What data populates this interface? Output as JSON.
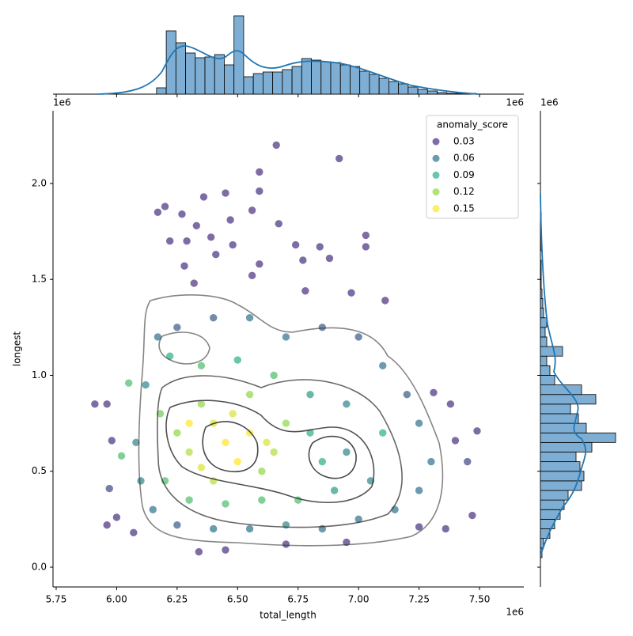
{
  "chart_data": [
    {
      "type": "scatter",
      "x_label": "total_length",
      "y_label": "longest",
      "x_offset": "1e6",
      "xlim": [
        5.737,
        7.683
      ],
      "ylim": [
        -0.103,
        2.379
      ],
      "xticks": [
        5.75,
        {
          "value": 6.0,
          "label": "6.00"
        },
        6.25,
        {
          "value": 6.5,
          "label": "6.50"
        },
        6.75,
        {
          "value": 7.0,
          "label": "7.00"
        },
        7.25,
        {
          "value": 7.5,
          "label": "7.50"
        }
      ],
      "yticks": [
        {
          "value": 0,
          "label": "0.0"
        },
        {
          "value": 0.5,
          "label": "0.5"
        },
        {
          "value": 1.0,
          "label": "1.0"
        },
        {
          "value": 1.5,
          "label": "1.5"
        },
        {
          "value": 2.0,
          "label": "2.0"
        }
      ],
      "legend": {
        "title": "anomaly_score",
        "position": "upper right",
        "levels": [
          0.03,
          0.06,
          0.09,
          0.12,
          0.15
        ],
        "colors": [
          "#472f7d",
          "#2d708e",
          "#29af7f",
          "#8fd744",
          "#fde725"
        ]
      },
      "x": [
        6.66,
        6.92,
        6.59,
        6.59,
        6.45,
        6.36,
        6.2,
        6.27,
        6.17,
        6.56,
        6.67,
        6.33,
        6.47,
        6.22,
        6.29,
        6.39,
        6.48,
        6.74,
        6.84,
        7.03,
        7.03,
        6.88,
        6.59,
        6.77,
        6.28,
        6.41,
        6.32,
        6.56,
        6.78,
        6.97,
        7.11,
        5.91,
        5.96,
        5.98,
        5.97,
        6.0,
        5.96,
        7.49,
        7.4,
        7.45,
        7.47,
        7.36,
        7.31,
        7.38,
        7.25,
        6.07,
        6.34,
        6.45,
        6.7,
        6.95,
        6.17,
        6.25,
        6.4,
        6.55,
        6.7,
        6.85,
        7.0,
        7.1,
        7.2,
        7.25,
        7.3,
        7.25,
        7.15,
        7.0,
        6.85,
        6.7,
        6.55,
        6.4,
        6.25,
        6.15,
        6.1,
        6.08,
        6.12,
        6.95,
        7.05,
        6.9,
        6.8,
        6.95,
        6.05,
        6.02,
        6.22,
        6.35,
        6.5,
        6.65,
        6.8,
        6.85,
        6.75,
        6.6,
        6.45,
        6.3,
        6.2,
        6.18,
        7.1,
        6.25,
        6.35,
        6.55,
        6.6,
        6.4,
        6.7,
        6.3,
        6.65,
        6.45,
        6.5,
        6.4,
        6.55,
        6.35,
        6.3,
        6.48,
        6.62
      ],
      "y": [
        2.2,
        2.13,
        2.06,
        1.96,
        1.95,
        1.93,
        1.88,
        1.84,
        1.85,
        1.86,
        1.79,
        1.78,
        1.81,
        1.7,
        1.7,
        1.72,
        1.68,
        1.68,
        1.67,
        1.73,
        1.67,
        1.61,
        1.58,
        1.6,
        1.57,
        1.63,
        1.48,
        1.52,
        1.44,
        1.43,
        1.39,
        0.85,
        0.85,
        0.66,
        0.41,
        0.26,
        0.22,
        0.71,
        0.66,
        0.55,
        0.27,
        0.2,
        0.91,
        0.85,
        0.21,
        0.18,
        0.08,
        0.09,
        0.12,
        0.13,
        1.2,
        1.25,
        1.3,
        1.3,
        1.2,
        1.25,
        1.2,
        1.05,
        0.9,
        0.75,
        0.55,
        0.4,
        0.3,
        0.25,
        0.2,
        0.22,
        0.2,
        0.2,
        0.22,
        0.3,
        0.45,
        0.65,
        0.95,
        0.6,
        0.45,
        0.4,
        0.9,
        0.85,
        0.96,
        0.58,
        1.1,
        1.05,
        1.08,
        1.0,
        0.7,
        0.55,
        0.35,
        0.35,
        0.33,
        0.35,
        0.45,
        0.8,
        0.7,
        0.7,
        0.85,
        0.9,
        0.5,
        0.45,
        0.75,
        0.6,
        0.6,
        0.65,
        0.55,
        0.75,
        0.7,
        0.52,
        0.75,
        0.8,
        0.65
      ],
      "hue": [
        0.02,
        0.02,
        0.02,
        0.03,
        0.02,
        0.03,
        0.02,
        0.02,
        0.03,
        0.03,
        0.02,
        0.03,
        0.02,
        0.03,
        0.02,
        0.02,
        0.02,
        0.02,
        0.02,
        0.02,
        0.02,
        0.02,
        0.03,
        0.03,
        0.03,
        0.02,
        0.03,
        0.03,
        0.03,
        0.03,
        0.02,
        0.02,
        0.02,
        0.03,
        0.04,
        0.03,
        0.02,
        0.03,
        0.03,
        0.04,
        0.03,
        0.03,
        0.03,
        0.02,
        0.03,
        0.03,
        0.02,
        0.03,
        0.03,
        0.03,
        0.06,
        0.05,
        0.05,
        0.06,
        0.06,
        0.05,
        0.05,
        0.06,
        0.05,
        0.06,
        0.06,
        0.06,
        0.06,
        0.06,
        0.06,
        0.07,
        0.06,
        0.06,
        0.05,
        0.06,
        0.07,
        0.07,
        0.07,
        0.07,
        0.07,
        0.08,
        0.08,
        0.07,
        0.1,
        0.1,
        0.09,
        0.1,
        0.09,
        0.1,
        0.09,
        0.09,
        0.1,
        0.1,
        0.1,
        0.1,
        0.1,
        0.11,
        0.09,
        0.12,
        0.12,
        0.12,
        0.12,
        0.13,
        0.12,
        0.13,
        0.13,
        0.15,
        0.16,
        0.14,
        0.15,
        0.14,
        0.15,
        0.14,
        0.14
      ]
    },
    {
      "type": "hist",
      "orientation": "vertical",
      "color": "#7eaed3",
      "x_offset_left": "1e6",
      "x_offset_right": "1e6",
      "xlim": [
        5.737,
        7.683
      ],
      "ylim": [
        0,
        100
      ],
      "bins": [
        6.165,
        6.205,
        6.245,
        6.285,
        6.325,
        6.365,
        6.405,
        6.445,
        6.485,
        6.525,
        6.565,
        6.605,
        6.645,
        6.685,
        6.725,
        6.765,
        6.805,
        6.845,
        6.885,
        6.925,
        6.965,
        7.005,
        7.045,
        7.085,
        7.125,
        7.165,
        7.205,
        7.245,
        7.285,
        7.325,
        7.365,
        7.405,
        7.445,
        7.485
      ],
      "counts": [
        8,
        80,
        65,
        52,
        46,
        47,
        50,
        37,
        99,
        22,
        26,
        28,
        28,
        31,
        35,
        45,
        43,
        41,
        40,
        37,
        35,
        29,
        25,
        20,
        16,
        13,
        9,
        6,
        4,
        2,
        1,
        1,
        1
      ]
    },
    {
      "type": "hist",
      "orientation": "horizontal",
      "color": "#7eaed3",
      "offset": "1e6",
      "ylim": [
        -0.103,
        2.379
      ],
      "xlim": [
        0,
        100
      ],
      "bins": [
        0.05,
        0.1,
        0.15,
        0.2,
        0.25,
        0.3,
        0.35,
        0.4,
        0.45,
        0.5,
        0.55,
        0.6,
        0.65,
        0.7,
        0.75,
        0.8,
        0.85,
        0.9,
        0.95,
        1.0,
        1.05,
        1.1,
        1.15,
        1.2,
        1.25,
        1.3,
        1.35,
        1.4,
        1.45,
        1.5,
        1.55,
        1.6,
        1.65,
        1.7,
        1.75,
        1.8,
        1.85,
        1.9,
        1.95
      ],
      "counts": [
        2,
        4,
        12,
        18,
        25,
        30,
        35,
        52,
        55,
        50,
        45,
        65,
        95,
        58,
        48,
        38,
        70,
        52,
        18,
        12,
        8,
        28,
        8,
        6,
        8,
        4,
        3,
        2,
        1,
        1,
        1,
        0,
        1,
        0,
        0,
        1,
        0,
        0
      ]
    }
  ]
}
